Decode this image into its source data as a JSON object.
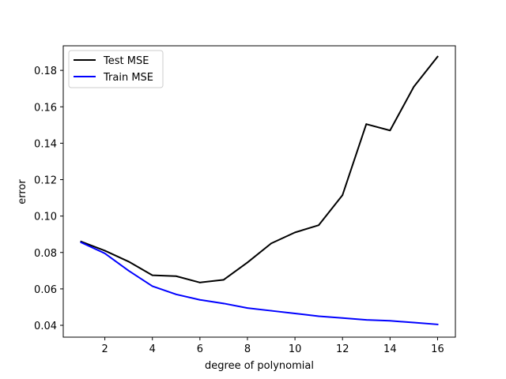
{
  "chart_data": {
    "type": "line",
    "title": "",
    "xlabel": "degree of polynomial",
    "ylabel": "error",
    "xlim": [
      0.25,
      16.75
    ],
    "ylim": [
      0.0335,
      0.1935
    ],
    "x_ticks": [
      2,
      4,
      6,
      8,
      10,
      12,
      14,
      16
    ],
    "y_ticks": [
      0.04,
      0.06,
      0.08,
      0.1,
      0.12,
      0.14,
      0.16,
      0.18
    ],
    "y_tick_labels": [
      "0.04",
      "0.06",
      "0.08",
      "0.10",
      "0.12",
      "0.14",
      "0.16",
      "0.18"
    ],
    "x_tick_labels": [
      "2",
      "4",
      "6",
      "8",
      "10",
      "12",
      "14",
      "16"
    ],
    "legend_position": "top-left",
    "grid": false,
    "x": [
      1,
      2,
      3,
      4,
      5,
      6,
      7,
      8,
      9,
      10,
      11,
      12,
      13,
      14,
      15,
      16
    ],
    "series": [
      {
        "name": "Test MSE",
        "color": "#000000",
        "values": [
          0.086,
          0.081,
          0.075,
          0.0675,
          0.067,
          0.0635,
          0.065,
          0.0745,
          0.085,
          0.091,
          0.095,
          0.1115,
          0.1505,
          0.147,
          0.171,
          0.1875
        ]
      },
      {
        "name": "Train MSE",
        "color": "#0000ff",
        "values": [
          0.0855,
          0.0795,
          0.07,
          0.0615,
          0.057,
          0.054,
          0.052,
          0.0495,
          0.048,
          0.0465,
          0.045,
          0.044,
          0.043,
          0.0425,
          0.0415,
          0.0405
        ]
      }
    ]
  }
}
